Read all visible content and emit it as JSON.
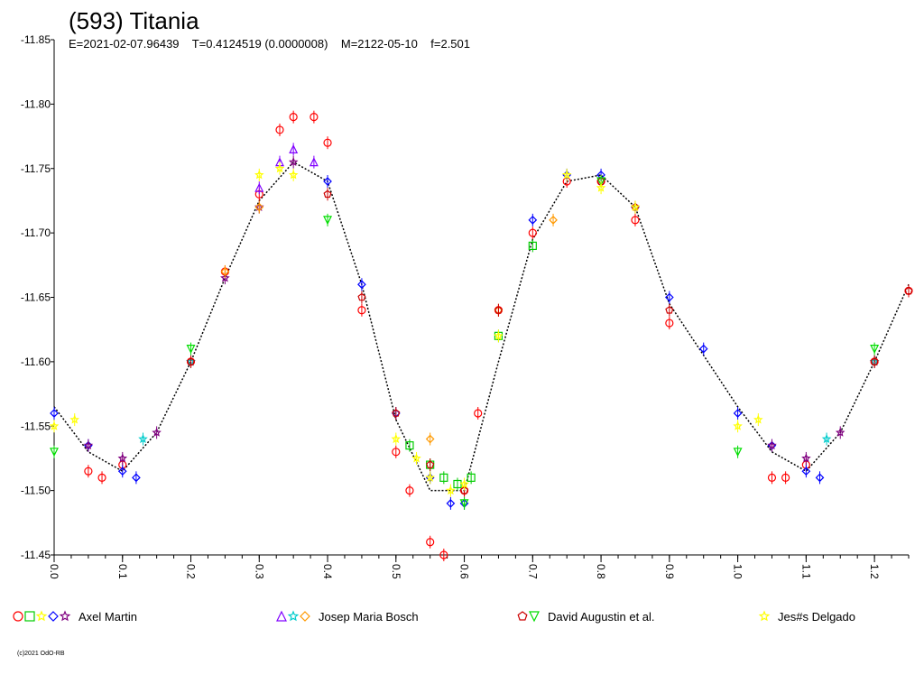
{
  "chart_data": {
    "type": "scatter",
    "title": "(593) Titania",
    "subtitle": "E=2021-02-07.96439    T=0.4124519 (0.0000008)    M=2122-05-10    f=2.501",
    "xlabel": "",
    "ylabel": "",
    "xlim": [
      0.0,
      1.25
    ],
    "ylim": [
      -11.85,
      -11.45
    ],
    "y_inverted": true,
    "grid": false,
    "legend_position": "bottom",
    "x_ticks": [
      0.0,
      0.1,
      0.2,
      0.3,
      0.4,
      0.5,
      0.6,
      0.7,
      0.8,
      0.9,
      1.0,
      1.1,
      1.2
    ],
    "x_tick_labels": [
      "0.0",
      "0.1",
      "0.2",
      "0.3",
      "0.4",
      "0.5",
      "0.6",
      "0.7",
      "0.8",
      "0.9",
      "1.0",
      "1.1",
      "1.2"
    ],
    "y_ticks": [
      -11.85,
      -11.8,
      -11.75,
      -11.7,
      -11.65,
      -11.6,
      -11.55,
      -11.5,
      -11.45
    ],
    "y_tick_labels": [
      "-11.85",
      "-11.80",
      "-11.75",
      "-11.70",
      "-11.65",
      "-11.60",
      "-11.55",
      "-11.50",
      "-11.45"
    ],
    "fit_curve": {
      "color": "#000000",
      "x": [
        0.0,
        0.05,
        0.1,
        0.15,
        0.2,
        0.25,
        0.3,
        0.35,
        0.4,
        0.45,
        0.5,
        0.55,
        0.6,
        0.65,
        0.7,
        0.75,
        0.8,
        0.85,
        0.9,
        0.95,
        1.0,
        1.05,
        1.1,
        1.15,
        1.2,
        1.25
      ],
      "y": [
        -11.565,
        -11.53,
        -11.515,
        -11.545,
        -11.6,
        -11.665,
        -11.725,
        -11.755,
        -11.74,
        -11.66,
        -11.555,
        -11.5,
        -11.5,
        -11.6,
        -11.695,
        -11.74,
        -11.745,
        -11.72,
        -11.645,
        -11.605,
        -11.565,
        -11.53,
        -11.515,
        -11.545,
        -11.6,
        -11.66
      ]
    },
    "series": [
      {
        "name": "Axel Martin",
        "color": "#ff0000",
        "symbol": "circle",
        "x": [
          0.05,
          0.07,
          0.1,
          0.2,
          0.25,
          0.3,
          0.33,
          0.35,
          0.38,
          0.4,
          0.45,
          0.5,
          0.52,
          0.55,
          0.57,
          0.6,
          0.62,
          0.65,
          0.7,
          0.75,
          0.8,
          0.85,
          0.9,
          1.05,
          1.07,
          1.1,
          1.2,
          1.25
        ],
        "y": [
          -11.515,
          -11.51,
          -11.52,
          -11.6,
          -11.67,
          -11.73,
          -11.78,
          -11.79,
          -11.79,
          -11.77,
          -11.64,
          -11.53,
          -11.5,
          -11.46,
          -11.45,
          -11.5,
          -11.56,
          -11.64,
          -11.7,
          -11.74,
          -11.74,
          -11.71,
          -11.63,
          -11.51,
          -11.51,
          -11.52,
          -11.6,
          -11.655
        ]
      },
      {
        "name": "Axel Martin",
        "color": "#00cc00",
        "symbol": "square",
        "x": [
          0.52,
          0.55,
          0.57,
          0.59,
          0.61,
          0.65,
          0.7
        ],
        "y": [
          -11.535,
          -11.52,
          -11.51,
          -11.505,
          -11.51,
          -11.62,
          -11.69
        ]
      },
      {
        "name": "Axel Martin",
        "color": "#0000ff",
        "symbol": "diamond",
        "x": [
          0.0,
          0.05,
          0.1,
          0.12,
          0.4,
          0.45,
          0.5,
          0.55,
          0.58,
          0.6,
          0.7,
          0.75,
          0.8,
          0.85,
          0.9,
          0.95,
          1.0,
          1.05,
          1.1,
          1.12
        ],
        "y": [
          -11.56,
          -11.535,
          -11.515,
          -11.51,
          -11.74,
          -11.66,
          -11.56,
          -11.51,
          -11.49,
          -11.49,
          -11.71,
          -11.745,
          -11.745,
          -11.72,
          -11.65,
          -11.61,
          -11.56,
          -11.535,
          -11.515,
          -11.51
        ]
      },
      {
        "name": "Axel Martin",
        "color": "#800080",
        "symbol": "star",
        "x": [
          0.05,
          0.1,
          0.15,
          0.2,
          0.25,
          0.3,
          0.35,
          1.05,
          1.1,
          1.15,
          1.2
        ],
        "y": [
          -11.535,
          -11.525,
          -11.545,
          -11.6,
          -11.665,
          -11.72,
          -11.755,
          -11.535,
          -11.525,
          -11.545,
          -11.6
        ]
      },
      {
        "name": "Josep Maria Bosch",
        "color": "#8000ff",
        "symbol": "triangle-up",
        "x": [
          0.3,
          0.33,
          0.35,
          0.38
        ],
        "y": [
          -11.735,
          -11.755,
          -11.765,
          -11.755
        ]
      },
      {
        "name": "Josep Maria Bosch",
        "color": "#00cccc",
        "symbol": "star",
        "x": [
          0.13,
          0.2,
          1.13,
          1.2
        ],
        "y": [
          -11.54,
          -11.6,
          -11.54,
          -11.6
        ]
      },
      {
        "name": "Josep Maria Bosch",
        "color": "#ff9900",
        "symbol": "diamond",
        "x": [
          0.25,
          0.3,
          0.55,
          0.65,
          0.73
        ],
        "y": [
          -11.67,
          -11.72,
          -11.54,
          -11.64,
          -11.71
        ]
      },
      {
        "name": "David Augustin et al.",
        "color": "#cc0000",
        "symbol": "pentagon",
        "x": [
          0.2,
          0.4,
          0.45,
          0.5,
          0.55,
          0.6,
          0.65,
          0.8,
          0.85,
          0.9,
          1.2,
          1.25
        ],
        "y": [
          -11.6,
          -11.73,
          -11.65,
          -11.56,
          -11.52,
          -11.5,
          -11.64,
          -11.74,
          -11.72,
          -11.64,
          -11.6,
          -11.655
        ]
      },
      {
        "name": "David Augustin et al.",
        "color": "#00dd00",
        "symbol": "triangle-down",
        "x": [
          0.0,
          0.2,
          0.4,
          0.6,
          0.8,
          1.0,
          1.2
        ],
        "y": [
          -11.53,
          -11.61,
          -11.71,
          -11.49,
          -11.74,
          -11.53,
          -11.61
        ]
      },
      {
        "name": "Jes#s Delgado",
        "color": "#ffff00",
        "symbol": "star",
        "x": [
          0.0,
          0.03,
          0.3,
          0.33,
          0.35,
          0.5,
          0.53,
          0.55,
          0.58,
          0.6,
          0.65,
          0.75,
          0.8,
          0.85,
          1.0,
          1.03
        ],
        "y": [
          -11.55,
          -11.555,
          -11.745,
          -11.75,
          -11.745,
          -11.54,
          -11.525,
          -11.51,
          -11.5,
          -11.505,
          -11.62,
          -11.745,
          -11.735,
          -11.72,
          -11.55,
          -11.555
        ]
      }
    ]
  },
  "legend": [
    {
      "label": "Axel Martin",
      "markers": [
        {
          "symbol": "circle",
          "color": "#ff0000"
        },
        {
          "symbol": "square",
          "color": "#00cc00"
        },
        {
          "symbol": "star",
          "color": "#ffff00"
        },
        {
          "symbol": "diamond",
          "color": "#0000ff"
        },
        {
          "symbol": "star",
          "color": "#800080"
        }
      ]
    },
    {
      "label": "Josep Maria Bosch",
      "markers": [
        {
          "symbol": "triangle-up",
          "color": "#8000ff"
        },
        {
          "symbol": "star",
          "color": "#00cccc"
        },
        {
          "symbol": "diamond",
          "color": "#ff9900"
        }
      ]
    },
    {
      "label": "David Augustin et al.",
      "markers": [
        {
          "symbol": "pentagon",
          "color": "#cc0000"
        },
        {
          "symbol": "triangle-down",
          "color": "#00dd00"
        }
      ]
    },
    {
      "label": "Jes#s Delgado",
      "markers": [
        {
          "symbol": "star",
          "color": "#ffff00"
        }
      ]
    }
  ],
  "copyright": "(c)2021 OdO-RB"
}
